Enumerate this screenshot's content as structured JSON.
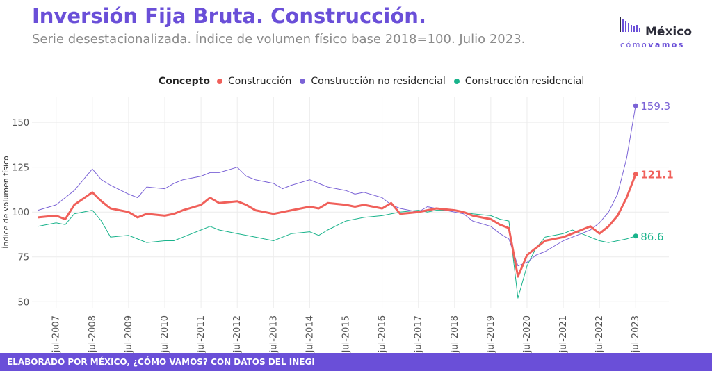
{
  "header": {
    "title": "Inversión Fija Bruta. Construcción.",
    "subtitle": "Serie desestacionalizada. Índice de volumen físico base 2018=100. Julio 2023."
  },
  "logo": {
    "name": "México",
    "tag_prefix": "cómo",
    "tag_bold": "vamos"
  },
  "legend": {
    "title": "Concepto"
  },
  "footer": {
    "text": "ELABORADO POR MÉXICO, ¿CÓMO VAMOS? CON DATOS DEL INEGI"
  },
  "colors": {
    "accent": "#6a4fd8",
    "construccion": "#f0605a",
    "no_residencial": "#7b63d6",
    "residencial": "#19b38b"
  },
  "chart_data": {
    "type": "line",
    "title": "Inversión Fija Bruta. Construcción.",
    "subtitle": "Serie desestacionalizada. Índice de volumen físico base 2018=100. Julio 2023.",
    "xlabel": "",
    "ylabel": "Índice de volumen físico",
    "ylim": [
      47,
      164
    ],
    "yticks": [
      50,
      75,
      100,
      125,
      150
    ],
    "xticks": [
      "jul-2007",
      "jul-2008",
      "jul-2009",
      "jul-2010",
      "jul-2011",
      "jul-2012",
      "jul-2013",
      "jul-2014",
      "jul-2015",
      "jul-2016",
      "jul-2017",
      "jul-2018",
      "jul-2019",
      "jul-2020",
      "jul-2021",
      "jul-2022",
      "jul-2023"
    ],
    "grid": true,
    "legend_position": "top",
    "series": [
      {
        "name": "Construcción",
        "color": "#f0605a",
        "end_label": "121.1",
        "bold": true,
        "points": [
          [
            "2007-01",
            97
          ],
          [
            "2007-07",
            98
          ],
          [
            "2007-10",
            96
          ],
          [
            "2008-01",
            104
          ],
          [
            "2008-07",
            111
          ],
          [
            "2008-10",
            106
          ],
          [
            "2009-01",
            102
          ],
          [
            "2009-07",
            100
          ],
          [
            "2009-10",
            97
          ],
          [
            "2010-01",
            99
          ],
          [
            "2010-07",
            98
          ],
          [
            "2010-10",
            99
          ],
          [
            "2011-01",
            101
          ],
          [
            "2011-07",
            104
          ],
          [
            "2011-10",
            108
          ],
          [
            "2012-01",
            105
          ],
          [
            "2012-07",
            106
          ],
          [
            "2012-10",
            104
          ],
          [
            "2013-01",
            101
          ],
          [
            "2013-07",
            99
          ],
          [
            "2013-10",
            100
          ],
          [
            "2014-01",
            101
          ],
          [
            "2014-07",
            103
          ],
          [
            "2014-10",
            102
          ],
          [
            "2015-01",
            105
          ],
          [
            "2015-07",
            104
          ],
          [
            "2015-10",
            103
          ],
          [
            "2016-01",
            104
          ],
          [
            "2016-07",
            102
          ],
          [
            "2016-10",
            105
          ],
          [
            "2017-01",
            99
          ],
          [
            "2017-07",
            100
          ],
          [
            "2017-10",
            101
          ],
          [
            "2018-01",
            102
          ],
          [
            "2018-07",
            101
          ],
          [
            "2018-10",
            100
          ],
          [
            "2019-01",
            98
          ],
          [
            "2019-07",
            96
          ],
          [
            "2019-10",
            93
          ],
          [
            "2020-01",
            91
          ],
          [
            "2020-04",
            64
          ],
          [
            "2020-07",
            76
          ],
          [
            "2020-10",
            80
          ],
          [
            "2021-01",
            84
          ],
          [
            "2021-07",
            86
          ],
          [
            "2021-10",
            88
          ],
          [
            "2022-01",
            90
          ],
          [
            "2022-04",
            92
          ],
          [
            "2022-07",
            88
          ],
          [
            "2022-10",
            92
          ],
          [
            "2023-01",
            98
          ],
          [
            "2023-04",
            108
          ],
          [
            "2023-07",
            121.1
          ]
        ]
      },
      {
        "name": "Construcción no residencial",
        "color": "#7b63d6",
        "end_label": "159.3",
        "points": [
          [
            "2007-01",
            101
          ],
          [
            "2007-07",
            104
          ],
          [
            "2007-10",
            108
          ],
          [
            "2008-01",
            112
          ],
          [
            "2008-07",
            124
          ],
          [
            "2008-10",
            118
          ],
          [
            "2009-01",
            115
          ],
          [
            "2009-07",
            110
          ],
          [
            "2009-10",
            108
          ],
          [
            "2010-01",
            114
          ],
          [
            "2010-07",
            113
          ],
          [
            "2010-10",
            116
          ],
          [
            "2011-01",
            118
          ],
          [
            "2011-07",
            120
          ],
          [
            "2011-10",
            122
          ],
          [
            "2012-01",
            122
          ],
          [
            "2012-07",
            125
          ],
          [
            "2012-10",
            120
          ],
          [
            "2013-01",
            118
          ],
          [
            "2013-07",
            116
          ],
          [
            "2013-10",
            113
          ],
          [
            "2014-01",
            115
          ],
          [
            "2014-07",
            118
          ],
          [
            "2014-10",
            116
          ],
          [
            "2015-01",
            114
          ],
          [
            "2015-07",
            112
          ],
          [
            "2015-10",
            110
          ],
          [
            "2016-01",
            111
          ],
          [
            "2016-07",
            108
          ],
          [
            "2016-10",
            104
          ],
          [
            "2017-01",
            102
          ],
          [
            "2017-07",
            100
          ],
          [
            "2017-10",
            103
          ],
          [
            "2018-01",
            102
          ],
          [
            "2018-07",
            100
          ],
          [
            "2018-10",
            99
          ],
          [
            "2019-01",
            95
          ],
          [
            "2019-07",
            92
          ],
          [
            "2019-10",
            88
          ],
          [
            "2020-01",
            85
          ],
          [
            "2020-04",
            70
          ],
          [
            "2020-07",
            72
          ],
          [
            "2020-10",
            76
          ],
          [
            "2021-01",
            78
          ],
          [
            "2021-07",
            84
          ],
          [
            "2021-10",
            86
          ],
          [
            "2022-01",
            88
          ],
          [
            "2022-04",
            90
          ],
          [
            "2022-07",
            94
          ],
          [
            "2022-10",
            100
          ],
          [
            "2023-01",
            110
          ],
          [
            "2023-04",
            130
          ],
          [
            "2023-07",
            159.3
          ]
        ]
      },
      {
        "name": "Construcción residencial",
        "color": "#19b38b",
        "end_label": "86.6",
        "points": [
          [
            "2007-01",
            92
          ],
          [
            "2007-07",
            94
          ],
          [
            "2007-10",
            93
          ],
          [
            "2008-01",
            99
          ],
          [
            "2008-07",
            101
          ],
          [
            "2008-10",
            95
          ],
          [
            "2009-01",
            86
          ],
          [
            "2009-07",
            87
          ],
          [
            "2009-10",
            85
          ],
          [
            "2010-01",
            83
          ],
          [
            "2010-07",
            84
          ],
          [
            "2010-10",
            84
          ],
          [
            "2011-01",
            86
          ],
          [
            "2011-07",
            90
          ],
          [
            "2011-10",
            92
          ],
          [
            "2012-01",
            90
          ],
          [
            "2012-07",
            88
          ],
          [
            "2012-10",
            87
          ],
          [
            "2013-01",
            86
          ],
          [
            "2013-07",
            84
          ],
          [
            "2013-10",
            86
          ],
          [
            "2014-01",
            88
          ],
          [
            "2014-07",
            89
          ],
          [
            "2014-10",
            87
          ],
          [
            "2015-01",
            90
          ],
          [
            "2015-07",
            95
          ],
          [
            "2015-10",
            96
          ],
          [
            "2016-01",
            97
          ],
          [
            "2016-07",
            98
          ],
          [
            "2016-10",
            99
          ],
          [
            "2017-01",
            100
          ],
          [
            "2017-07",
            101
          ],
          [
            "2017-10",
            100
          ],
          [
            "2018-01",
            101
          ],
          [
            "2018-07",
            101
          ],
          [
            "2018-10",
            100
          ],
          [
            "2019-01",
            99
          ],
          [
            "2019-07",
            98
          ],
          [
            "2019-10",
            96
          ],
          [
            "2020-01",
            95
          ],
          [
            "2020-04",
            52
          ],
          [
            "2020-07",
            70
          ],
          [
            "2020-10",
            80
          ],
          [
            "2021-01",
            86
          ],
          [
            "2021-07",
            88
          ],
          [
            "2021-10",
            90
          ],
          [
            "2022-01",
            88
          ],
          [
            "2022-04",
            86
          ],
          [
            "2022-07",
            84
          ],
          [
            "2022-10",
            83
          ],
          [
            "2023-01",
            84
          ],
          [
            "2023-04",
            85
          ],
          [
            "2023-07",
            86.6
          ]
        ]
      }
    ]
  }
}
